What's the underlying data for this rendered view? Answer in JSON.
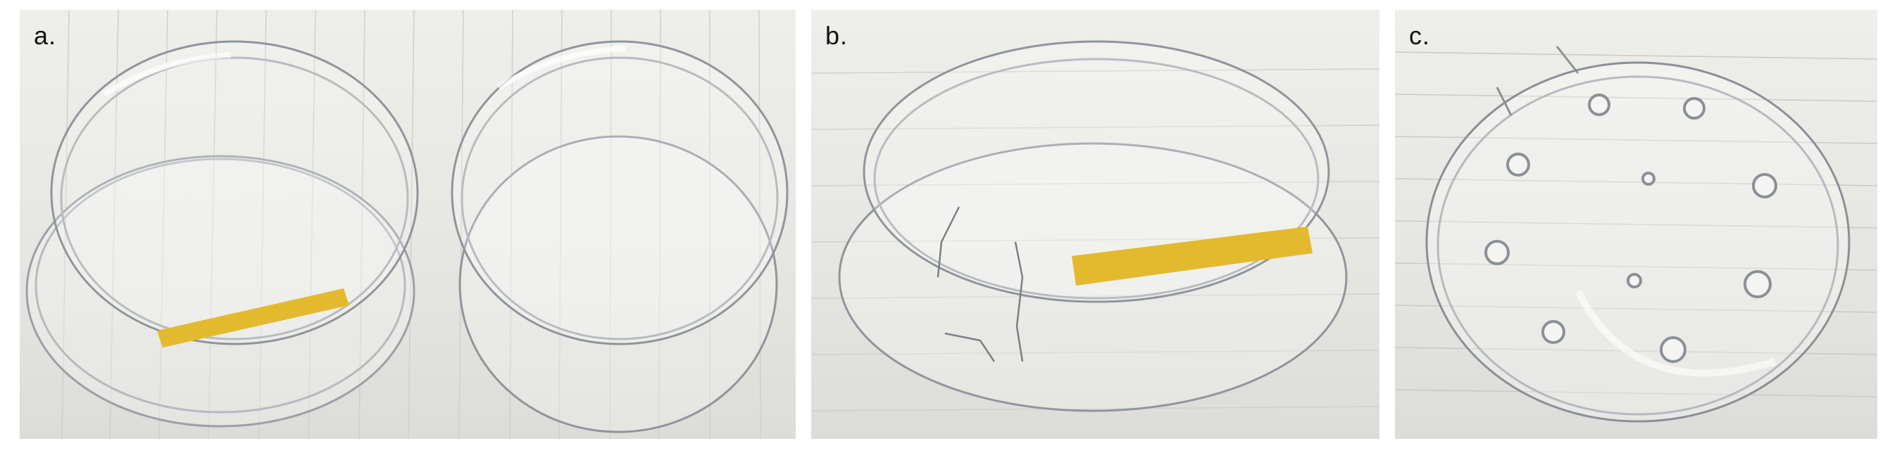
{
  "panels": [
    {
      "label": "a."
    },
    {
      "label": "b."
    },
    {
      "label": "c."
    }
  ],
  "colors": {
    "paper": "#e9e9e5",
    "plastic_edge": "#9aa0a6",
    "label_tape": "#e3b92e"
  }
}
